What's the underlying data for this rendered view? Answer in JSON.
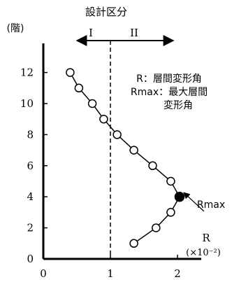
{
  "chart_data": {
    "type": "line",
    "title": "設計区分",
    "ylabel": "(階)",
    "region_labels": [
      "I",
      "II"
    ],
    "divider_x": 1.0,
    "x_ticks": [
      0,
      1,
      2
    ],
    "y_ticks": [
      0,
      2,
      4,
      6,
      8,
      10,
      12
    ],
    "xlim": [
      0,
      2.5
    ],
    "ylim": [
      0,
      13
    ],
    "grid": false,
    "series": [
      {
        "x": [
          0.4,
          0.53,
          0.73,
          0.9,
          1.1,
          1.35,
          1.63,
          1.9,
          2.03,
          1.9,
          1.68,
          1.35
        ],
        "y": [
          12,
          11,
          10,
          9,
          8,
          7,
          6,
          5,
          4,
          3,
          2,
          1
        ]
      }
    ],
    "highlight": {
      "label": "Rmax",
      "x": 2.03,
      "y": 4
    },
    "legend": {
      "line1": "R：層間変形角",
      "line2": "Rmax：最大層間",
      "line3": "変形角"
    },
    "x_axis_label": "R",
    "x_unit": "(×10⁻²)"
  }
}
